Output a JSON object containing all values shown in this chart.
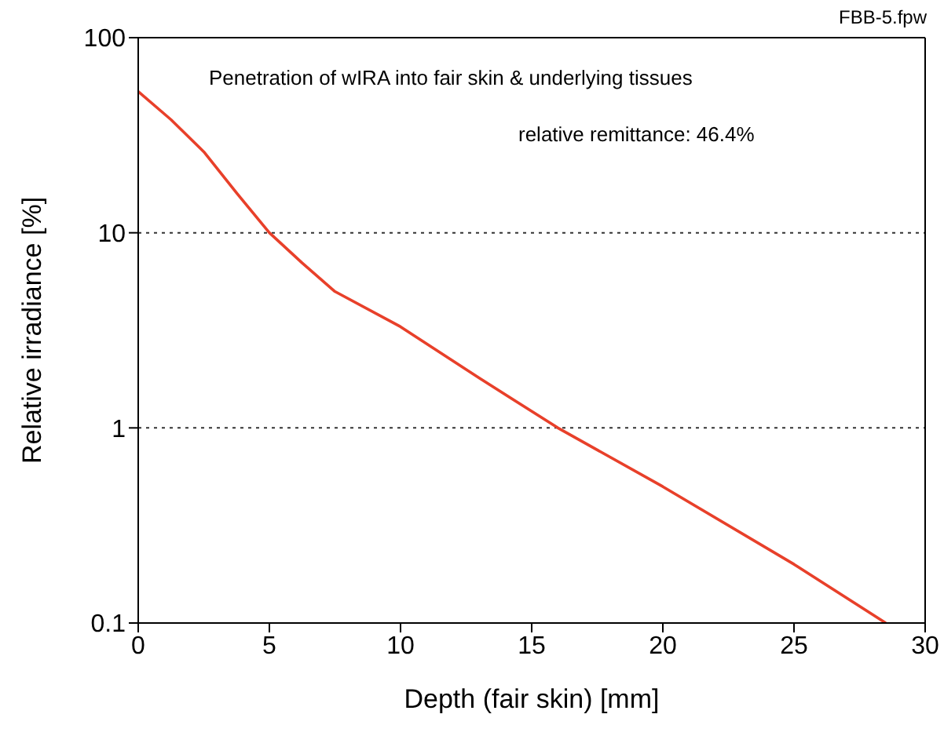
{
  "chart_data": {
    "type": "line",
    "title": "Penetration of wIRA into fair skin & underlying tissues",
    "xlabel": "Depth (fair skin) [mm]",
    "ylabel": "Relative irradiance [%]",
    "annotations": [
      "relative remittance: 46.4%",
      "FBB-5.fpw"
    ],
    "x": [
      0,
      1.25,
      2.5,
      3.75,
      5,
      6.25,
      7.5,
      10,
      13,
      16,
      20,
      25,
      28.5
    ],
    "series": [
      {
        "color": "#e8402a",
        "values": [
          53,
          38,
          26,
          16,
          10,
          7,
          5,
          3.3,
          1.8,
          1,
          0.5,
          0.2,
          0.1
        ]
      }
    ],
    "xlim": [
      0,
      30
    ],
    "xticks": [
      0,
      5,
      10,
      15,
      20,
      25,
      30
    ],
    "ylim": [
      0.1,
      100
    ],
    "yticks": [
      0.1,
      1,
      10,
      100
    ],
    "log": "y",
    "grid": "y",
    "legend": false,
    "marker": "none",
    "line_style": "solid"
  }
}
